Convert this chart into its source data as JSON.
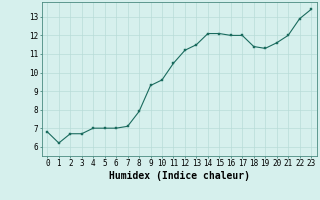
{
  "x": [
    0,
    1,
    2,
    3,
    4,
    5,
    6,
    7,
    8,
    9,
    10,
    11,
    12,
    13,
    14,
    15,
    16,
    17,
    18,
    19,
    20,
    21,
    22,
    23
  ],
  "y": [
    6.8,
    6.2,
    6.7,
    6.7,
    7.0,
    7.0,
    7.0,
    7.1,
    7.9,
    9.3,
    9.6,
    10.5,
    11.2,
    11.5,
    12.1,
    12.1,
    12.0,
    12.0,
    11.4,
    11.3,
    11.6,
    12.0,
    12.9,
    13.4
  ],
  "line_color": "#1a6b5e",
  "marker_color": "#1a6b5e",
  "bg_color": "#d6f0ed",
  "grid_color": "#b8dcd8",
  "xlabel": "Humidex (Indice chaleur)",
  "xlim": [
    -0.5,
    23.5
  ],
  "ylim": [
    5.5,
    13.8
  ],
  "yticks": [
    6,
    7,
    8,
    9,
    10,
    11,
    12,
    13
  ],
  "xticks": [
    0,
    1,
    2,
    3,
    4,
    5,
    6,
    7,
    8,
    9,
    10,
    11,
    12,
    13,
    14,
    15,
    16,
    17,
    18,
    19,
    20,
    21,
    22,
    23
  ],
  "xtick_labels": [
    "0",
    "1",
    "2",
    "3",
    "4",
    "5",
    "6",
    "7",
    "8",
    "9",
    "10",
    "11",
    "12",
    "13",
    "14",
    "15",
    "16",
    "17",
    "18",
    "19",
    "20",
    "21",
    "22",
    "23"
  ],
  "tick_fontsize": 5.5,
  "xlabel_fontsize": 7,
  "linewidth": 0.8,
  "markersize": 2.0
}
